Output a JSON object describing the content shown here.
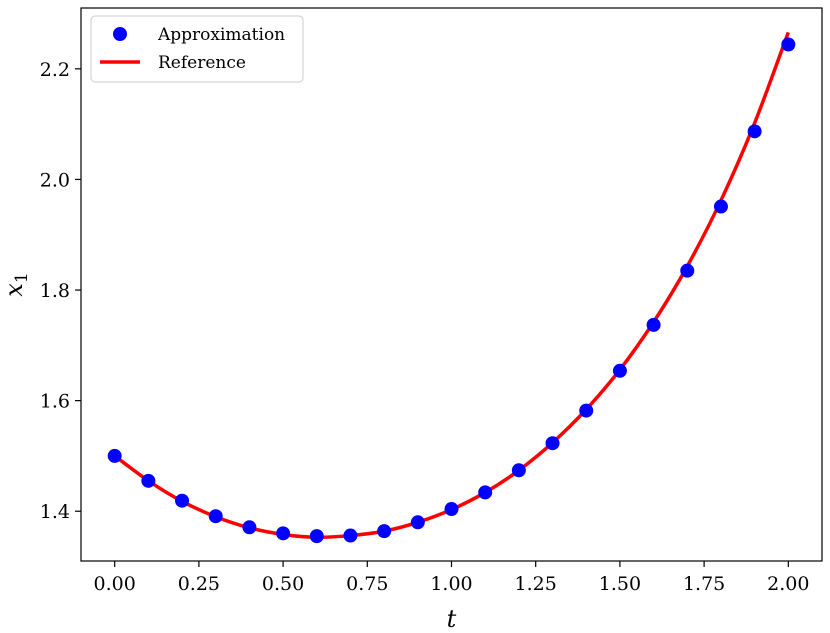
{
  "chart_data": {
    "type": "line",
    "xlabel": "t",
    "ylabel": "x",
    "ylabel_subscript": "1",
    "xlim": [
      -0.1,
      2.1
    ],
    "ylim": [
      1.31,
      2.31
    ],
    "xticks": [
      0.0,
      0.25,
      0.5,
      0.75,
      1.0,
      1.25,
      1.5,
      1.75,
      2.0
    ],
    "xtick_labels": [
      "0.00",
      "0.25",
      "0.50",
      "0.75",
      "1.00",
      "1.25",
      "1.50",
      "1.75",
      "2.00"
    ],
    "yticks": [
      1.4,
      1.6,
      1.8,
      2.0,
      2.2
    ],
    "ytick_labels": [
      "1.4",
      "1.6",
      "1.8",
      "2.0",
      "2.2"
    ],
    "grid": false,
    "legend_position": "top-left",
    "series": [
      {
        "name": "Approximation",
        "kind": "scatter",
        "color": "#0000ff",
        "x": [
          0.0,
          0.1,
          0.2,
          0.3,
          0.4,
          0.5,
          0.6,
          0.7,
          0.8,
          0.9,
          1.0,
          1.1,
          1.2,
          1.3,
          1.4,
          1.5,
          1.6,
          1.7,
          1.8,
          1.9,
          2.0
        ],
        "y": [
          1.5,
          1.455,
          1.419,
          1.391,
          1.371,
          1.36,
          1.355,
          1.356,
          1.364,
          1.38,
          1.404,
          1.434,
          1.474,
          1.523,
          1.582,
          1.654,
          1.737,
          1.835,
          1.951,
          2.087,
          2.244
        ]
      },
      {
        "name": "Reference",
        "kind": "line",
        "color": "#ff0000",
        "x": [
          0.0,
          0.1,
          0.2,
          0.3,
          0.4,
          0.5,
          0.6,
          0.7,
          0.8,
          0.9,
          1.0,
          1.1,
          1.2,
          1.3,
          1.4,
          1.5,
          1.6,
          1.7,
          1.8,
          1.9,
          2.0
        ],
        "y": [
          1.5,
          1.455,
          1.418,
          1.39,
          1.37,
          1.358,
          1.353,
          1.356,
          1.364,
          1.38,
          1.403,
          1.434,
          1.474,
          1.524,
          1.584,
          1.656,
          1.742,
          1.843,
          1.962,
          2.102,
          2.266
        ]
      }
    ]
  }
}
